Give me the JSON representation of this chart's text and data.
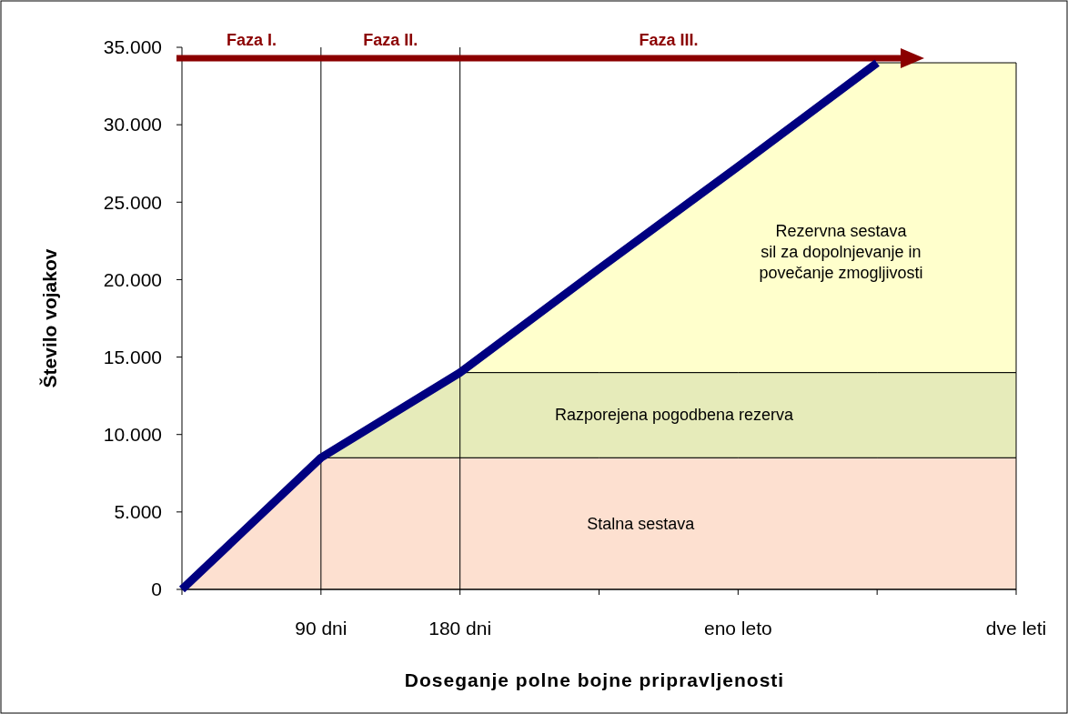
{
  "chart_data": {
    "type": "area",
    "stacked": true,
    "xlabel": "Doseganje polne bojne pripravljenosti",
    "ylabel": "Število vojakov",
    "categories": [
      null,
      "90 dni",
      "180 dni",
      null,
      "eno leto",
      null,
      "dve leti"
    ],
    "ylim": [
      0,
      35000
    ],
    "yticks": [
      0,
      {
        "value": 5000,
        "label": "5.000"
      },
      {
        "value": 10000,
        "label": "10.000"
      },
      {
        "value": 15000,
        "label": "15.000"
      },
      {
        "value": 20000,
        "label": "20.000"
      },
      {
        "value": 25000,
        "label": "25.000"
      },
      {
        "value": 30000,
        "label": "30.000"
      },
      {
        "value": 35000,
        "label": "35.000"
      }
    ],
    "series": [
      {
        "name": "Stalna sestava",
        "color": "#fde0d0",
        "values": [
          0,
          8500,
          8500,
          8500,
          8500,
          8500,
          8500
        ]
      },
      {
        "name": "Razporejena pogodbena rezerva",
        "color": "#e6ebba",
        "values": [
          0,
          0,
          5500,
          5500,
          5500,
          5500,
          5500
        ]
      },
      {
        "name": "Rezervna sestava\nsil za dopolnjevanje in\npovečanje zmogljivosti",
        "color": "#ffffcc",
        "values": [
          0,
          0,
          0,
          6700,
          13300,
          20000,
          20000
        ]
      },
      {
        "type": "line",
        "color": "#000080",
        "values": [
          0,
          8500,
          14000,
          20700,
          27300,
          34000,
          null
        ]
      }
    ],
    "ref_lines": [
      {
        "axis": "x",
        "value": "90 dni",
        "color": "#000000"
      },
      {
        "axis": "x",
        "value": "180 dni",
        "color": "#000000"
      }
    ],
    "annotations": [
      "Faza I.",
      "Faza II.",
      "Faza III."
    ],
    "grid": false
  }
}
